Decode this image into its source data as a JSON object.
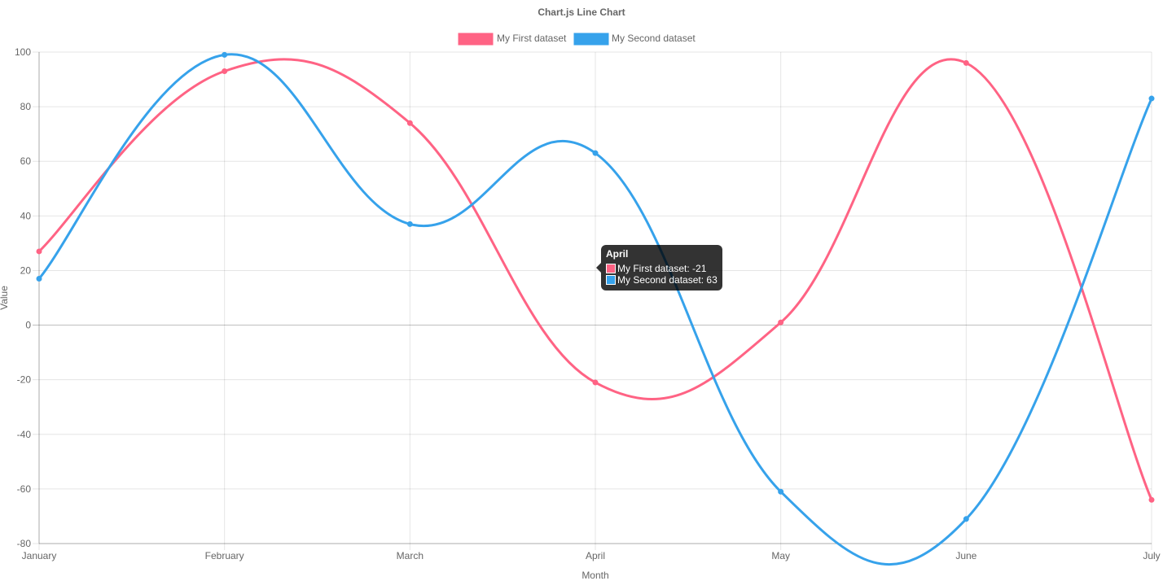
{
  "chart_data": {
    "type": "line",
    "title": "Chart.js Line Chart",
    "xlabel": "Month",
    "ylabel": "Value",
    "categories": [
      "January",
      "February",
      "March",
      "April",
      "May",
      "June",
      "July"
    ],
    "ylim": [
      -80,
      100
    ],
    "yticks": [
      "100",
      "80",
      "60",
      "40",
      "20",
      "0",
      "-20",
      "-40",
      "-60",
      "-80"
    ],
    "grid": true,
    "legend_position": "top",
    "series": [
      {
        "name": "My First dataset",
        "values": [
          27,
          93,
          74,
          -21,
          1,
          96,
          -64
        ],
        "color": "#ff6384"
      },
      {
        "name": "My Second dataset",
        "values": [
          17,
          99,
          37,
          63,
          -61,
          -71,
          83
        ],
        "color": "#36a2eb"
      }
    ]
  },
  "tooltip": {
    "title": "April",
    "rows": [
      {
        "label": "My First dataset: -21",
        "color": "#ff6384"
      },
      {
        "label": "My Second dataset: 63",
        "color": "#36a2eb"
      }
    ]
  }
}
